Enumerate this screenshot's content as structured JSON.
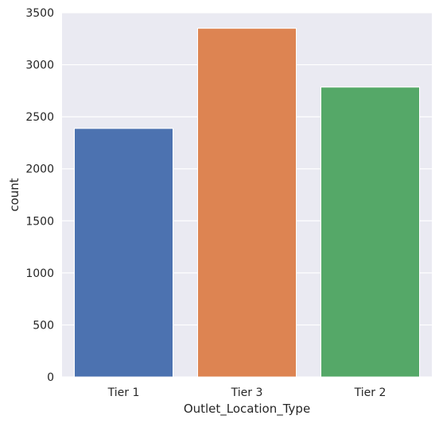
{
  "chart_data": {
    "type": "bar",
    "title": "",
    "xlabel": "Outlet_Location_Type",
    "ylabel": "count",
    "categories": [
      "Tier 1",
      "Tier 3",
      "Tier 2"
    ],
    "values": [
      2388,
      3350,
      2785
    ],
    "ylim": [
      0,
      3500
    ],
    "yticks": [
      0,
      500,
      1000,
      1500,
      2000,
      2500,
      3000,
      3500
    ],
    "grid": true,
    "background": "#eaeaf2",
    "colors": [
      "#4c72b0",
      "#dd8452",
      "#55a868"
    ]
  }
}
